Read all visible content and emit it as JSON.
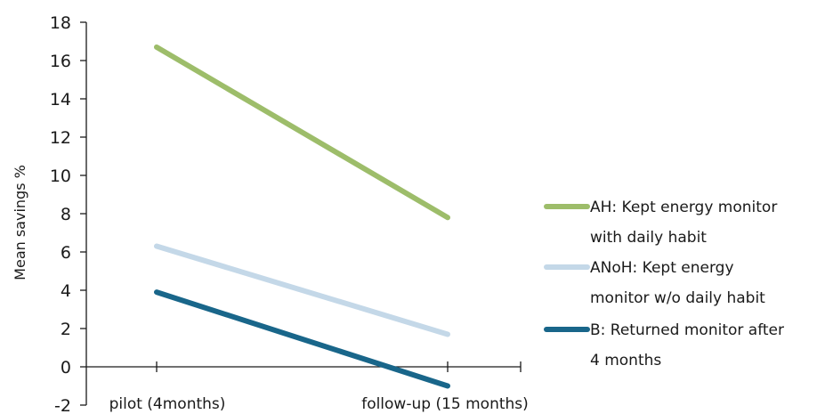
{
  "chart_data": {
    "type": "line",
    "title": "",
    "xlabel": "",
    "ylabel": "Mean savings %",
    "categories": [
      "pilot (4months)",
      "follow-up (15 months)"
    ],
    "ylim": [
      -2,
      18
    ],
    "yticks": [
      -2,
      0,
      2,
      4,
      6,
      8,
      10,
      12,
      14,
      16,
      18
    ],
    "grid": false,
    "legend_position": "right",
    "series": [
      {
        "name": "AH: Kept energy monitor with daily habit",
        "legend_lines": [
          "AH: Kept energy monitor",
          "with daily habit"
        ],
        "color": "#9dbd6a",
        "values": [
          16.7,
          7.8
        ]
      },
      {
        "name": "ANoH: Kept energy monitor w/o daily habit",
        "legend_lines": [
          "ANoH: Kept energy",
          "monitor w/o daily habit"
        ],
        "color": "#c4d8e8",
        "values": [
          6.3,
          1.7
        ]
      },
      {
        "name": "B: Returned monitor after 4 months",
        "legend_lines": [
          "B: Returned monitor after",
          "4 months"
        ],
        "color": "#19668a",
        "values": [
          3.9,
          -1.0
        ]
      }
    ]
  }
}
